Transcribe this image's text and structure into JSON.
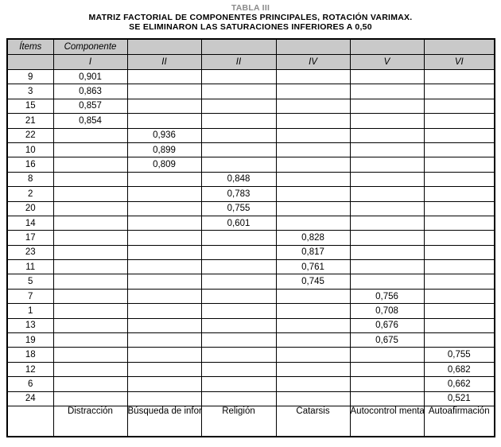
{
  "title": {
    "tabla": "TABLA III",
    "line1": "MATRIZ FACTORIAL DE COMPONENTES PRINCIPALES, ROTACIÓN VARIMAX.",
    "line2": "SE ELIMINARON LAS SATURACIONES INFERIORES A 0,50"
  },
  "table": {
    "header_row1": [
      "Ítems",
      "Componente",
      "",
      "",
      "",
      "",
      ""
    ],
    "header_row2": [
      "",
      "I",
      "II",
      "II",
      "IV",
      "V",
      "VI"
    ],
    "rows": [
      {
        "item": "9",
        "values": [
          "0,901",
          "",
          "",
          "",
          "",
          ""
        ]
      },
      {
        "item": "3",
        "values": [
          "0,863",
          "",
          "",
          "",
          "",
          ""
        ]
      },
      {
        "item": "15",
        "values": [
          "0,857",
          "",
          "",
          "",
          "",
          ""
        ]
      },
      {
        "item": "21",
        "values": [
          "0,854",
          "",
          "",
          "",
          "",
          ""
        ]
      },
      {
        "item": "22",
        "values": [
          "",
          "0,936",
          "",
          "",
          "",
          ""
        ]
      },
      {
        "item": "10",
        "values": [
          "",
          "0,899",
          "",
          "",
          "",
          ""
        ]
      },
      {
        "item": "16",
        "values": [
          "",
          "0,809",
          "",
          "",
          "",
          ""
        ]
      },
      {
        "item": "8",
        "values": [
          "",
          "",
          "0,848",
          "",
          "",
          ""
        ]
      },
      {
        "item": "2",
        "values": [
          "",
          "",
          "0,783",
          "",
          "",
          ""
        ]
      },
      {
        "item": "20",
        "values": [
          "",
          "",
          "0,755",
          "",
          "",
          ""
        ]
      },
      {
        "item": "14",
        "values": [
          "",
          "",
          "0,601",
          "",
          "",
          ""
        ]
      },
      {
        "item": "17",
        "values": [
          "",
          "",
          "",
          "0,828",
          "",
          ""
        ]
      },
      {
        "item": "23",
        "values": [
          "",
          "",
          "",
          "0,817",
          "",
          ""
        ]
      },
      {
        "item": "11",
        "values": [
          "",
          "",
          "",
          "0,761",
          "",
          ""
        ]
      },
      {
        "item": "5",
        "values": [
          "",
          "",
          "",
          "0,745",
          "",
          ""
        ]
      },
      {
        "item": "7",
        "values": [
          "",
          "",
          "",
          "",
          "0,756",
          ""
        ]
      },
      {
        "item": "1",
        "values": [
          "",
          "",
          "",
          "",
          "0,708",
          ""
        ]
      },
      {
        "item": "13",
        "values": [
          "",
          "",
          "",
          "",
          "0,676",
          ""
        ]
      },
      {
        "item": "19",
        "values": [
          "",
          "",
          "",
          "",
          "0,675",
          ""
        ]
      },
      {
        "item": "18",
        "values": [
          "",
          "",
          "",
          "",
          "",
          "0,755"
        ]
      },
      {
        "item": "12",
        "values": [
          "",
          "",
          "",
          "",
          "",
          "0,682"
        ]
      },
      {
        "item": "6",
        "values": [
          "",
          "",
          "",
          "",
          "",
          "0,662"
        ]
      },
      {
        "item": "24",
        "values": [
          "",
          "",
          "",
          "",
          "",
          "0,521"
        ]
      }
    ],
    "footer": [
      "",
      "Distracción",
      "Búsqueda de información",
      "Religión",
      "Catarsis",
      "Autocontrol mental",
      "Autoafirmación"
    ]
  },
  "colors": {
    "header_bg": "#c9c9c9",
    "title_gray": "#8a8a8a",
    "border": "#000000",
    "background": "#ffffff"
  }
}
